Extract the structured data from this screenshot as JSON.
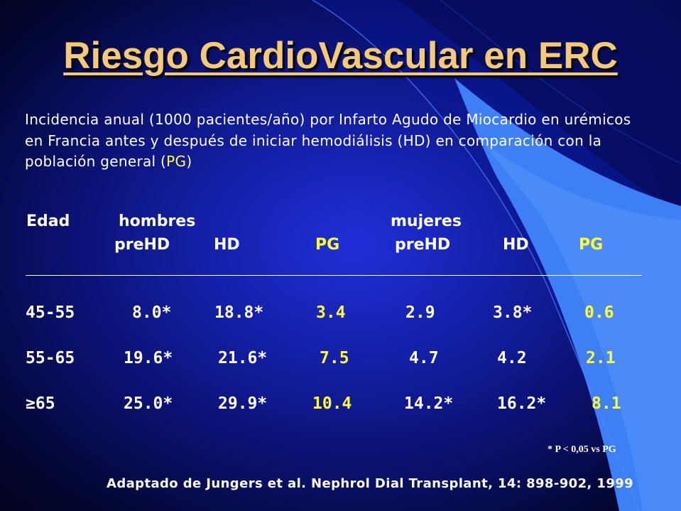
{
  "title": "Riesgo CardioVascular en ERC",
  "intro": {
    "text_before": "Incidencia anual (1000 pacientes/año) por Infarto Agudo de Miocardio en urémicos en Francia antes y después de iniciar hemodiálisis (HD) en comparación con la población general (",
    "highlight": "PG",
    "text_after": ")"
  },
  "table": {
    "age_header": "Edad",
    "group_men": "hombres",
    "group_women": "mujeres",
    "subheaders": [
      "preHD",
      "HD",
      "PG",
      "preHD",
      "HD",
      "PG"
    ],
    "rows": [
      {
        "age": "45-55",
        "values": [
          "8.0*",
          "18.8*",
          "3.4",
          "2.9",
          "3.8*",
          "0.6"
        ]
      },
      {
        "age": "55-65",
        "values": [
          "19.6*",
          "21.6*",
          "7.5",
          "4.7",
          "4.2",
          "2.1"
        ]
      },
      {
        "age": "≥65",
        "values": [
          "25.0*",
          "29.9*",
          "10.4",
          "14.2*",
          "16.2*",
          "8.1"
        ]
      }
    ]
  },
  "footnote": "* P < 0,05 vs PG",
  "reference": "Adaptado de Jungers et al. Nephrol Dial Transplant, 14: 898-902, 1999",
  "colors": {
    "title": "#f6c978",
    "highlight": "#ffff33",
    "text": "#ffffff",
    "background": "#1420a8",
    "accent_band": "#3f7ff5"
  }
}
